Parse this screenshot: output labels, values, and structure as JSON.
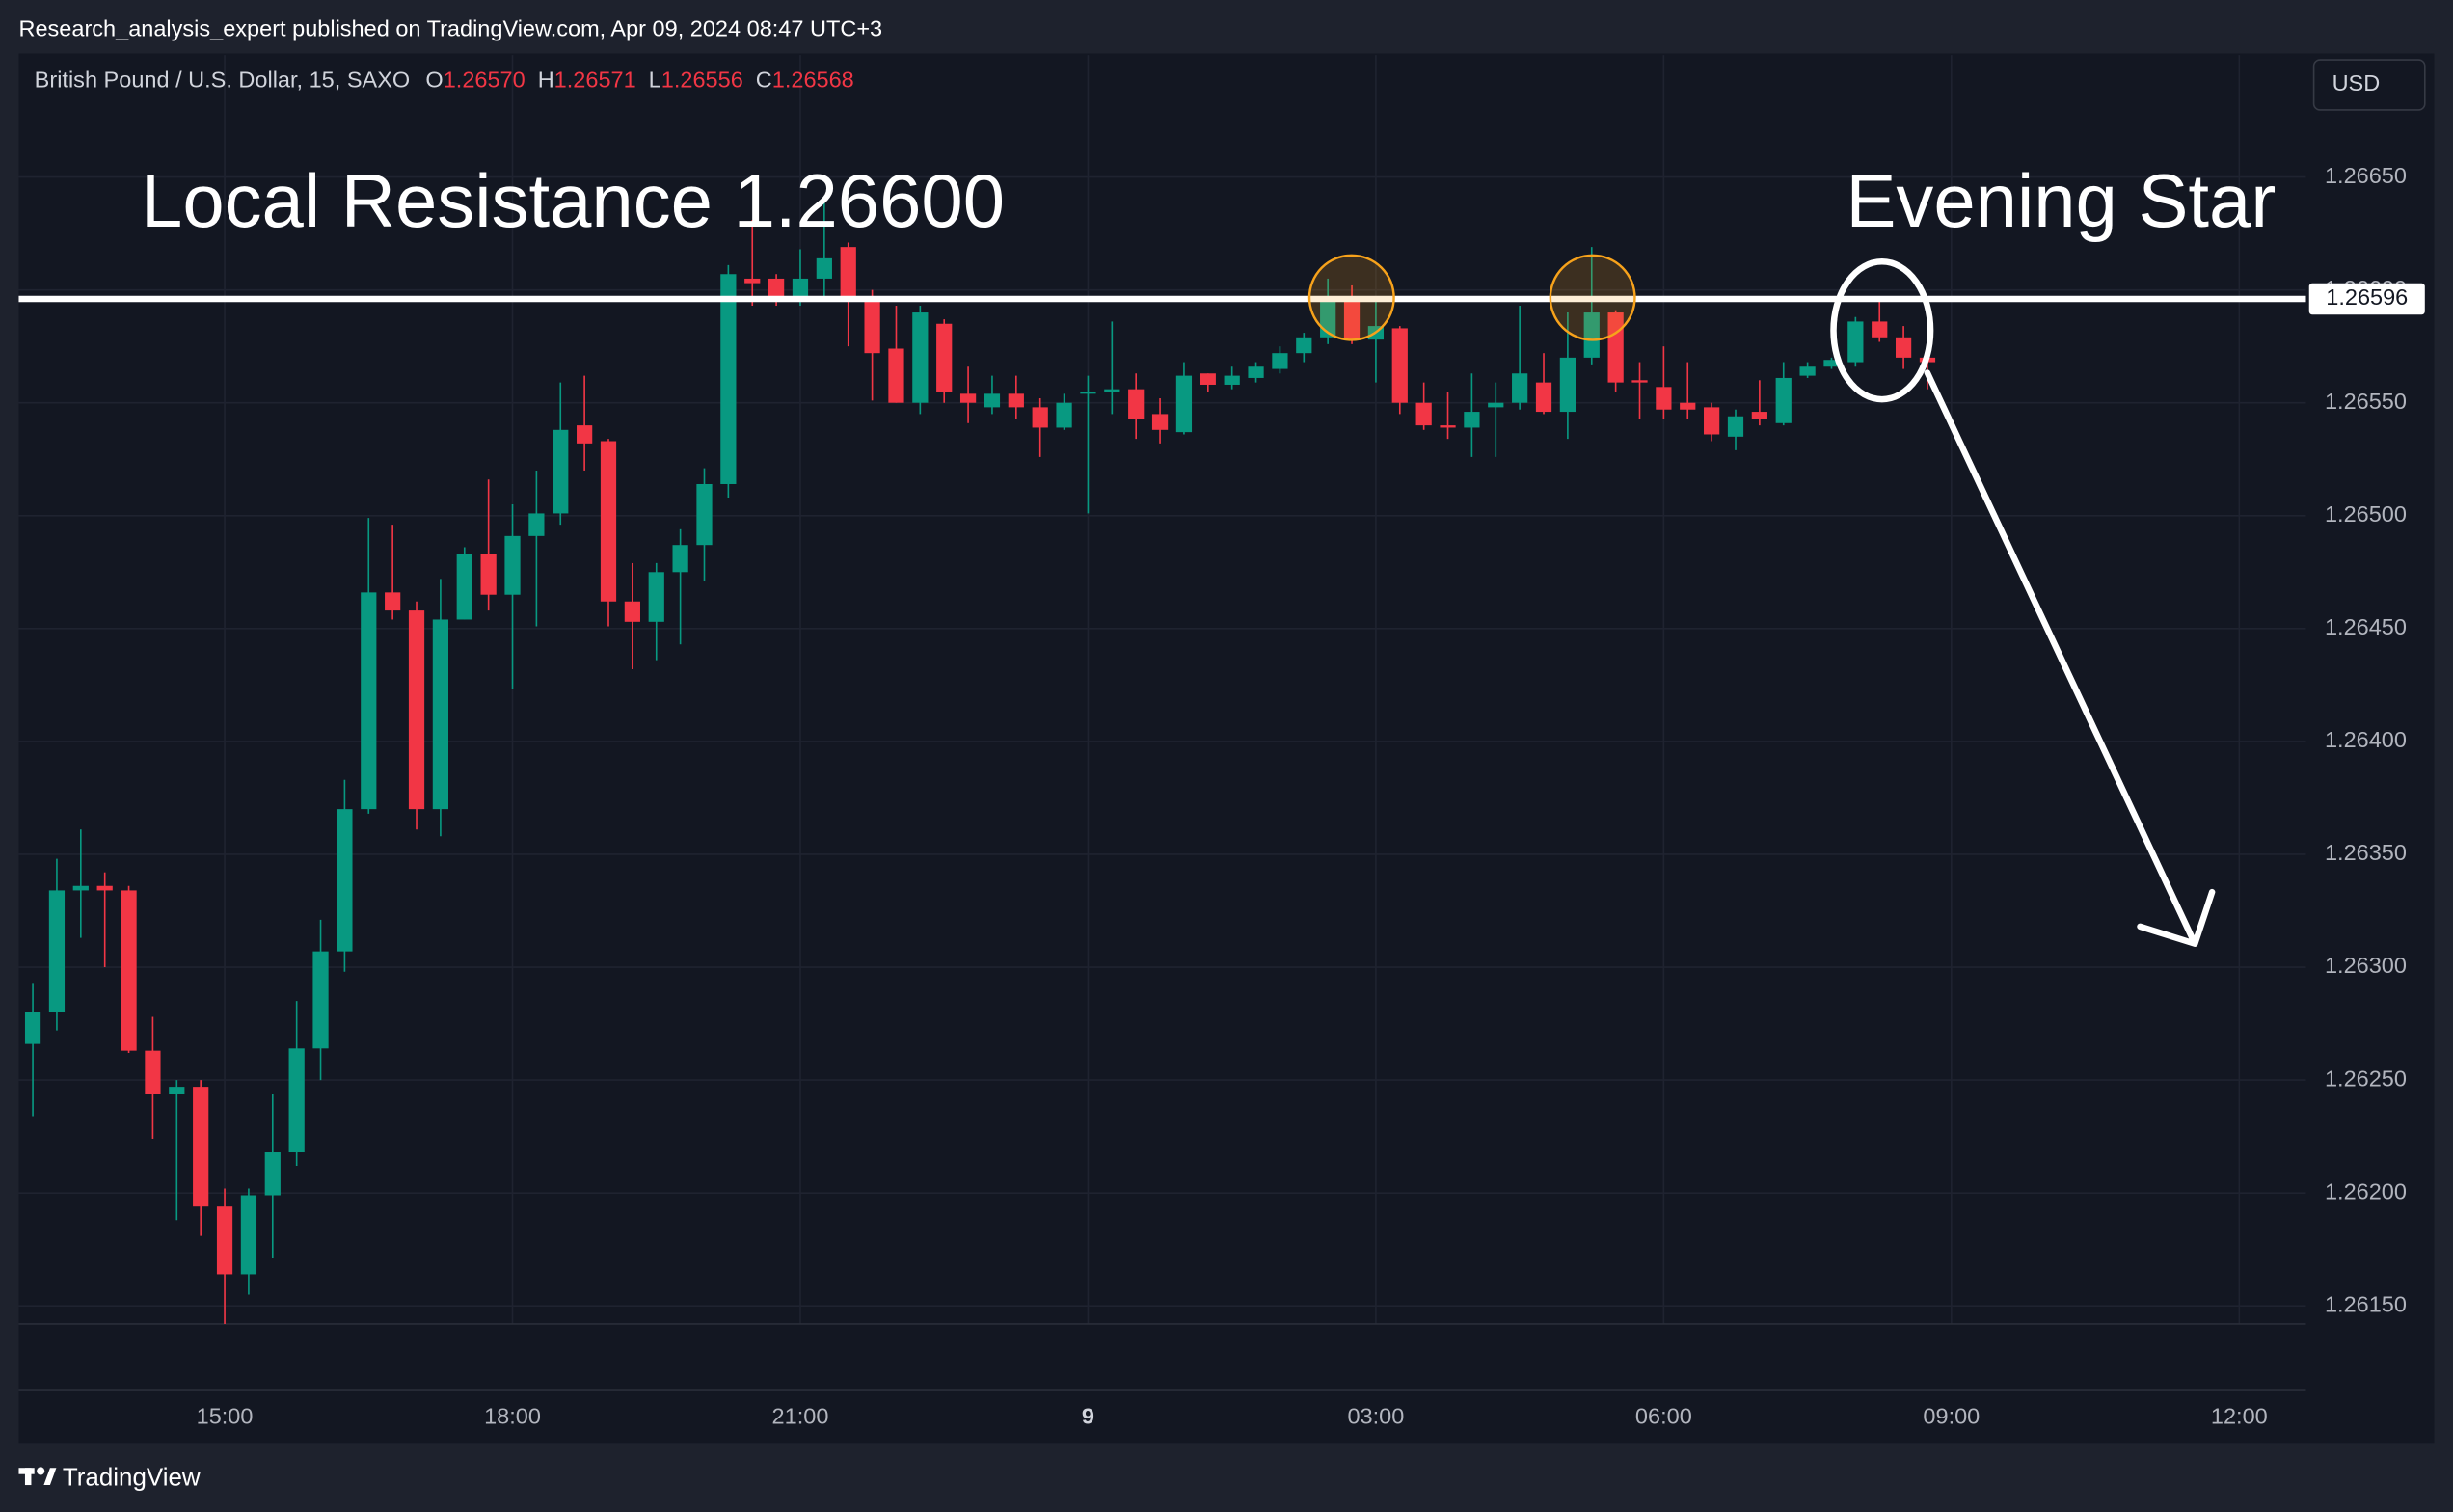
{
  "chart_data": {
    "type": "candlestick",
    "publisher": "Research_analysis_expert published on TradingView.com, Apr 09, 2024 08:47 UTC+3",
    "symbol": "British Pound / U.S. Dollar, 15, SAXO",
    "ohlc_legend": [
      {
        "key": "O",
        "label": "1.26570"
      },
      {
        "key": "H",
        "label": "1.26571"
      },
      {
        "key": "L",
        "label": "1.26556"
      },
      {
        "key": "C",
        "label": "1.26568"
      }
    ],
    "currency": "USD",
    "brand": "TradingView",
    "annotations": [
      "Local Resistance 1.26600",
      "Evening Star"
    ],
    "resistance_level": 1.26596,
    "up_color": "#089981",
    "down_color": "#f23645",
    "grid": true,
    "x": [
      "13:00",
      "13:15",
      "13:30",
      "13:45",
      "14:00",
      "14:15",
      "14:30",
      "14:45",
      "15:00",
      "15:15",
      "15:30",
      "15:45",
      "16:00",
      "16:15",
      "16:30",
      "16:45",
      "17:00",
      "17:15",
      "17:30",
      "17:45",
      "18:00",
      "18:15",
      "18:30",
      "18:45",
      "19:00",
      "19:15",
      "19:30",
      "19:45",
      "20:00",
      "20:15",
      "20:30",
      "20:45",
      "21:00",
      "21:15",
      "21:30",
      "21:45",
      "22:00",
      "22:15",
      "22:30",
      "22:45",
      "23:00",
      "23:15",
      "23:30",
      "23:45",
      "00:00",
      "00:15",
      "00:30",
      "00:45",
      "01:00",
      "01:15",
      "01:30",
      "01:45",
      "02:00",
      "02:15",
      "02:30",
      "02:45",
      "03:00",
      "03:15",
      "03:30",
      "03:45",
      "04:00",
      "04:15",
      "04:30",
      "04:45",
      "05:00",
      "05:15",
      "05:30",
      "05:45",
      "06:00",
      "06:15",
      "06:30",
      "06:45",
      "07:00",
      "07:15",
      "07:30",
      "07:45",
      "08:00",
      "08:15",
      "08:30",
      "08:45"
    ],
    "open": [
      1.26266,
      1.2628,
      1.26334,
      1.26336,
      1.26334,
      1.26263,
      1.26244,
      1.26247,
      1.26194,
      1.26164,
      1.26199,
      1.26218,
      1.26264,
      1.26307,
      1.2637,
      1.26466,
      1.26458,
      1.2637,
      1.26454,
      1.26483,
      1.26465,
      1.26491,
      1.26501,
      1.2654,
      1.26533,
      1.26462,
      1.26453,
      1.26475,
      1.26487,
      1.26514,
      1.26605,
      1.26605,
      1.26597,
      1.26605,
      1.26619,
      1.26597,
      1.26574,
      1.2655,
      1.26585,
      1.26554,
      1.26548,
      1.26554,
      1.26548,
      1.26539,
      1.26554,
      1.26555,
      1.26556,
      1.26545,
      1.26537,
      1.26563,
      1.26558,
      1.26561,
      1.26565,
      1.26572,
      1.26579,
      1.26597,
      1.26578,
      1.26583,
      1.2655,
      1.2654,
      1.26539,
      1.26548,
      1.2655,
      1.26559,
      1.26546,
      1.2657,
      1.2659,
      1.2656,
      1.26557,
      1.2655,
      1.26548,
      1.26535,
      1.26546,
      1.26541,
      1.26562,
      1.26566,
      1.26568,
      1.26586,
      1.26579,
      1.2657
    ],
    "high": [
      1.26293,
      1.26348,
      1.26361,
      1.26342,
      1.26336,
      1.26278,
      1.2625,
      1.2625,
      1.26202,
      1.26202,
      1.26244,
      1.26285,
      1.26321,
      1.26383,
      1.26499,
      1.26496,
      1.26462,
      1.26472,
      1.26486,
      1.26516,
      1.26505,
      1.2652,
      1.26559,
      1.26562,
      1.26534,
      1.26479,
      1.26479,
      1.26494,
      1.26521,
      1.26611,
      1.26631,
      1.26607,
      1.26618,
      1.26641,
      1.26621,
      1.266,
      1.26593,
      1.26593,
      1.26587,
      1.26566,
      1.26562,
      1.26562,
      1.26552,
      1.26554,
      1.26562,
      1.26586,
      1.26563,
      1.26552,
      1.26568,
      1.26563,
      1.26566,
      1.26568,
      1.26575,
      1.26581,
      1.26605,
      1.26602,
      1.26597,
      1.26584,
      1.26559,
      1.26555,
      1.26563,
      1.26559,
      1.26593,
      1.26572,
      1.2659,
      1.26619,
      1.26591,
      1.26568,
      1.26575,
      1.26568,
      1.2655,
      1.26547,
      1.2656,
      1.26568,
      1.26568,
      1.2657,
      1.26588,
      1.26596,
      1.26584,
      1.26571
    ],
    "low": [
      1.26234,
      1.26272,
      1.26313,
      1.263,
      1.26262,
      1.26224,
      1.26188,
      1.26181,
      1.26142,
      1.26155,
      1.26171,
      1.26212,
      1.2625,
      1.26298,
      1.26368,
      1.26454,
      1.26361,
      1.26358,
      1.26454,
      1.26458,
      1.26423,
      1.26451,
      1.26496,
      1.2652,
      1.26451,
      1.26432,
      1.26436,
      1.26443,
      1.26471,
      1.26508,
      1.26593,
      1.26593,
      1.26593,
      1.26597,
      1.26575,
      1.26551,
      1.2655,
      1.26545,
      1.2655,
      1.26541,
      1.26545,
      1.26543,
      1.26526,
      1.26538,
      1.26501,
      1.26545,
      1.26534,
      1.26532,
      1.26536,
      1.26555,
      1.26556,
      1.26559,
      1.26563,
      1.26568,
      1.26576,
      1.26576,
      1.26559,
      1.26545,
      1.26538,
      1.26534,
      1.26526,
      1.26526,
      1.26547,
      1.26545,
      1.26534,
      1.26567,
      1.26555,
      1.26543,
      1.26543,
      1.26543,
      1.26533,
      1.26529,
      1.2654,
      1.2654,
      1.26561,
      1.26565,
      1.26566,
      1.26577,
      1.26565,
      1.26556
    ],
    "close": [
      1.2628,
      1.26334,
      1.26336,
      1.26334,
      1.26263,
      1.26244,
      1.26247,
      1.26194,
      1.26164,
      1.26199,
      1.26218,
      1.26264,
      1.26307,
      1.2637,
      1.26466,
      1.26458,
      1.2637,
      1.26454,
      1.26483,
      1.26465,
      1.26491,
      1.26501,
      1.26538,
      1.26532,
      1.26462,
      1.26453,
      1.26475,
      1.26487,
      1.26514,
      1.26607,
      1.26603,
      1.26597,
      1.26605,
      1.26614,
      1.26597,
      1.26572,
      1.2655,
      1.2659,
      1.26555,
      1.2655,
      1.26554,
      1.26548,
      1.26539,
      1.2655,
      1.26555,
      1.26556,
      1.26543,
      1.26538,
      1.26562,
      1.26558,
      1.26562,
      1.26566,
      1.26572,
      1.26579,
      1.26597,
      1.26578,
      1.26584,
      1.2655,
      1.2654,
      1.26539,
      1.26546,
      1.2655,
      1.26563,
      1.26546,
      1.2657,
      1.2659,
      1.26559,
      1.26559,
      1.26547,
      1.26547,
      1.26536,
      1.26544,
      1.26543,
      1.26561,
      1.26566,
      1.26569,
      1.26586,
      1.26579,
      1.2657,
      1.26568
    ],
    "ylim": [
      1.26142,
      1.26704
    ],
    "yticks": [
      {
        "value": 1.2615,
        "label": "1.26150"
      },
      {
        "value": 1.262,
        "label": "1.26200"
      },
      {
        "value": 1.2625,
        "label": "1.26250"
      },
      {
        "value": 1.263,
        "label": "1.26300"
      },
      {
        "value": 1.2635,
        "label": "1.26350"
      },
      {
        "value": 1.264,
        "label": "1.26400"
      },
      {
        "value": 1.2645,
        "label": "1.26450"
      },
      {
        "value": 1.265,
        "label": "1.26500"
      },
      {
        "value": 1.2655,
        "label": "1.26550"
      },
      {
        "value": 1.266,
        "label": "1.26600"
      },
      {
        "value": 1.2665,
        "label": "1.26650"
      }
    ],
    "xticks": [
      "15:00",
      "18:00",
      "21:00",
      {
        "value": "00:00",
        "label": "9"
      },
      "03:00",
      "06:00",
      "09:00",
      "12:00"
    ]
  }
}
